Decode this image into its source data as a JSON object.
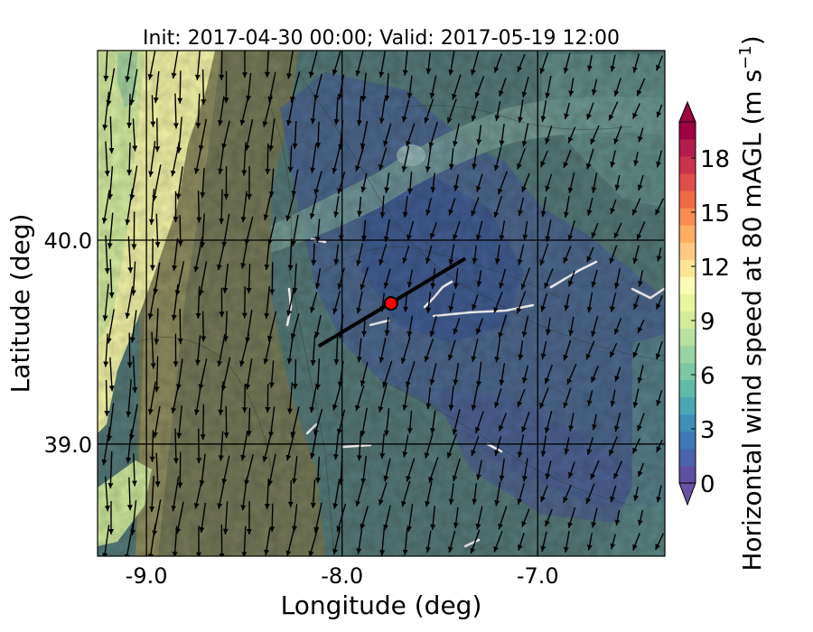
{
  "chart_data": {
    "type": "heatmap",
    "title": "Init: 2017-04-30 00:00; Valid: 2017-05-19 12:00",
    "xlabel": "Longitude (deg)",
    "ylabel": "Latitude (deg)",
    "xlim": [
      -9.25,
      -6.35
    ],
    "ylim": [
      38.45,
      40.93
    ],
    "xticks": [
      -9.0,
      -8.0,
      -7.0
    ],
    "xtick_labels": [
      "-9.0",
      "-8.0",
      "-7.0"
    ],
    "yticks": [
      39.0,
      40.0
    ],
    "ytick_labels": [
      "39.0",
      "40.0"
    ],
    "grid": true,
    "colorbar": {
      "label": "Horizontal wind speed at 80 mAGL (m s",
      "label_superscript": "−1",
      "label_close": ")",
      "min": 0,
      "max": 20,
      "step": 1,
      "extend": "both",
      "ticks": [
        0,
        3,
        6,
        9,
        12,
        15,
        18
      ],
      "tick_labels": [
        "0",
        "3",
        "6",
        "9",
        "12",
        "15",
        "18"
      ],
      "colors": [
        "#5e4fa2",
        "#4a63ac",
        "#3d79b6",
        "#3e8fba",
        "#4ba6b1",
        "#5fbaa8",
        "#7cc7a4",
        "#9bd3a4",
        "#b8e0a3",
        "#d3ec9c",
        "#e9f59c",
        "#fbfbb6",
        "#fee593",
        "#fec980",
        "#fdae61",
        "#f88d51",
        "#ef6a45",
        "#df4e4b",
        "#c9334d",
        "#b41c4d",
        "#9e0142"
      ],
      "under_color": "#6a52a4",
      "over_color": "#9e0142"
    },
    "overlays": {
      "wind_vectors": true,
      "cross_section_line": {
        "start": [
          -8.12,
          39.48
        ],
        "end": [
          -7.37,
          39.91
        ],
        "color": "#000000"
      },
      "site_marker": {
        "lon": -7.75,
        "lat": 39.69,
        "color": "#ff0000"
      }
    }
  }
}
